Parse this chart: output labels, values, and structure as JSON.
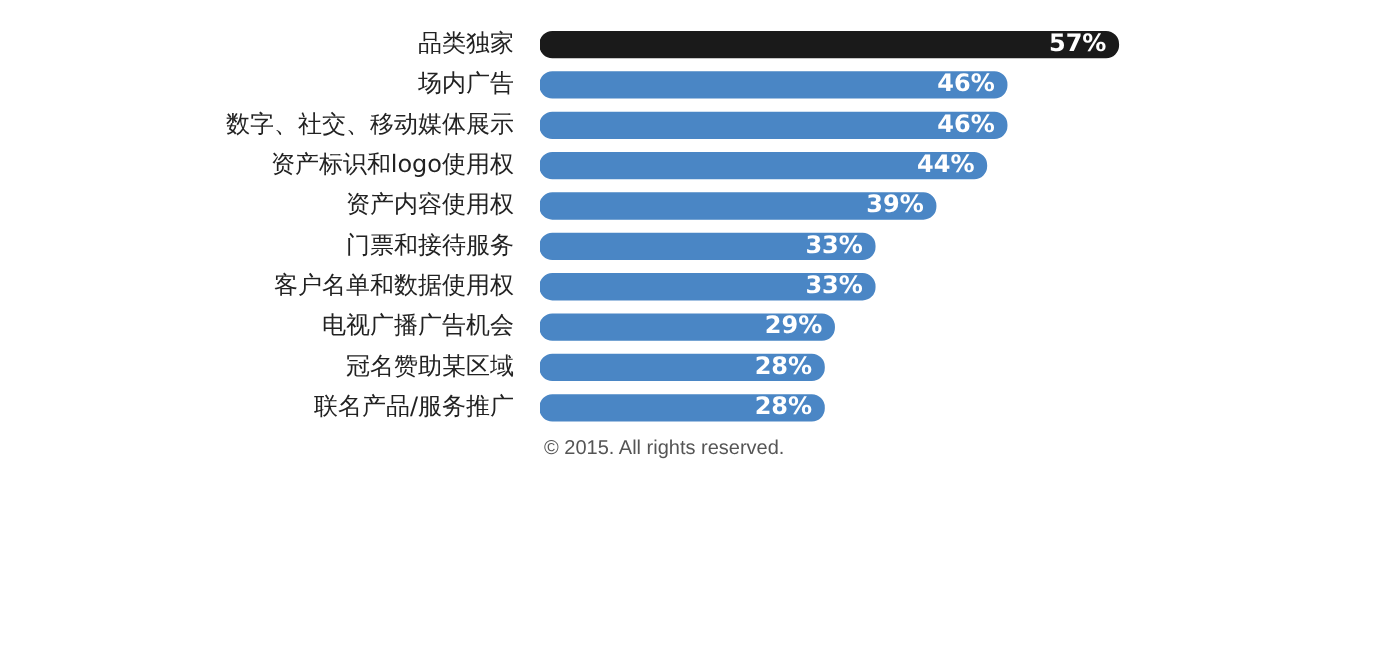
{
  "chart_data": {
    "type": "bar",
    "orientation": "horizontal",
    "categories": [
      "品类独家",
      "场内广告",
      "数字、社交、移动媒体展示",
      "资产标识和logo使用权",
      "资产内容使用权",
      "门票和接待服务",
      "客户名单和数据使用权",
      "电视广播广告机会",
      "冠名赞助某区域",
      "联名产品/服务推广"
    ],
    "values": [
      57,
      46,
      46,
      44,
      39,
      33,
      33,
      29,
      28,
      28
    ],
    "colors": [
      "#1a1a1a",
      "#4a86c5",
      "#4a86c5",
      "#4a86c5",
      "#4a86c5",
      "#4a86c5",
      "#4a86c5",
      "#4a86c5",
      "#4a86c5",
      "#4a86c5"
    ],
    "value_labels": [
      "57%",
      "46%",
      "46%",
      "44%",
      "39%",
      "33%",
      "33%",
      "29%",
      "28%",
      "28%"
    ],
    "annotations": [
      "© 2015. All rights reserved."
    ]
  }
}
